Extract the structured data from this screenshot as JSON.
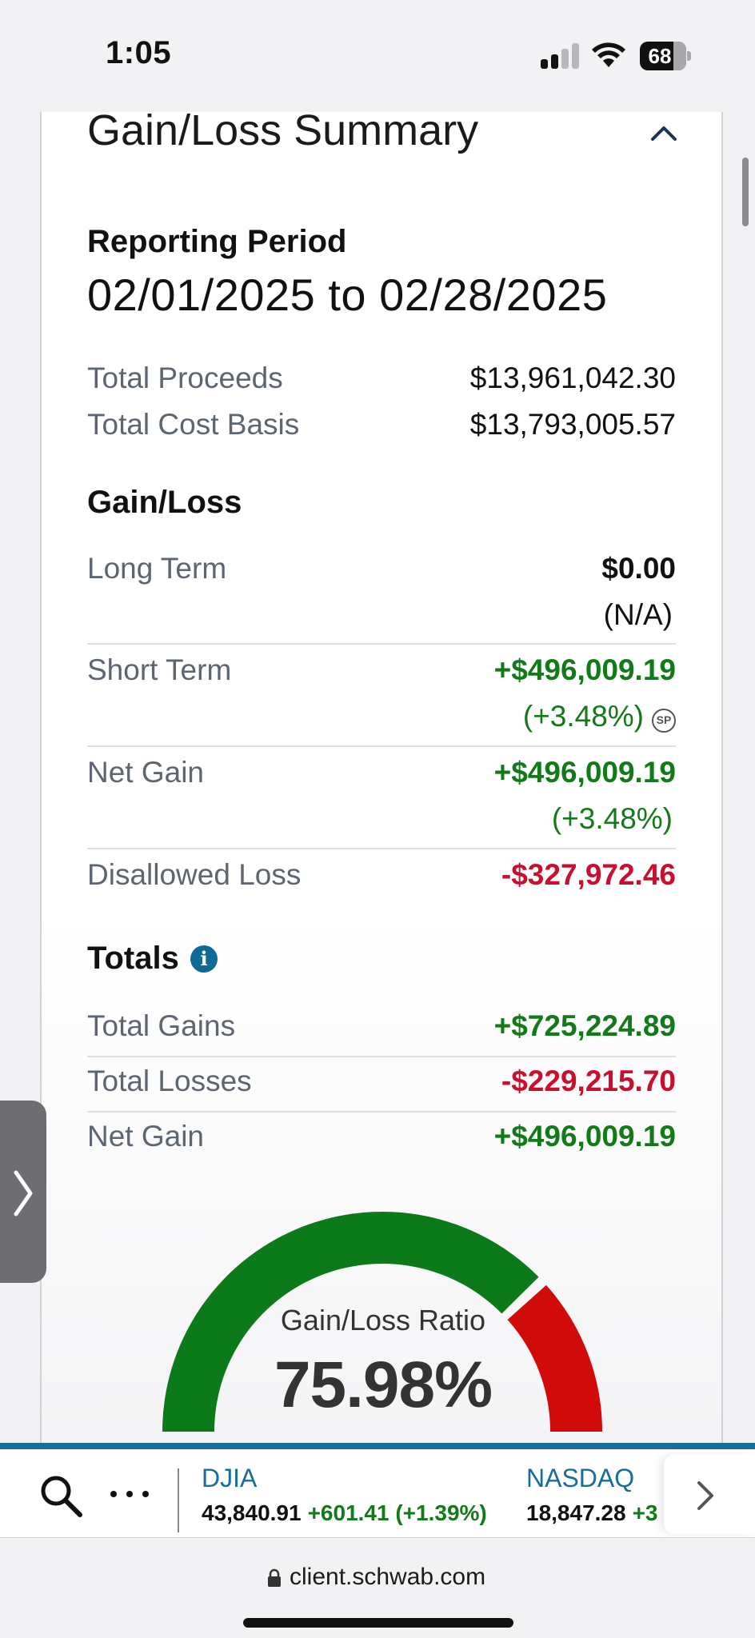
{
  "status_bar": {
    "time": "1:05",
    "battery": "68"
  },
  "section": {
    "title": "Gain/Loss Summary"
  },
  "reporting_period": {
    "label": "Reporting Period",
    "value": "02/01/2025 to 02/28/2025"
  },
  "summary": {
    "total_proceeds_label": "Total Proceeds",
    "total_proceeds_value": "$13,961,042.30",
    "total_cost_basis_label": "Total Cost Basis",
    "total_cost_basis_value": "$13,793,005.57"
  },
  "gain_loss": {
    "heading": "Gain/Loss",
    "long_term": {
      "label": "Long Term",
      "value": "$0.00",
      "pct": "(N/A)"
    },
    "short_term": {
      "label": "Short Term",
      "value": "+$496,009.19",
      "pct": "(+3.48%)",
      "badge": "SP"
    },
    "net_gain": {
      "label": "Net Gain",
      "value": "+$496,009.19",
      "pct": "(+3.48%)"
    },
    "disallowed_loss": {
      "label": "Disallowed Loss",
      "value": "-$327,972.46"
    }
  },
  "totals": {
    "heading": "Totals",
    "info_icon": "i",
    "total_gains": {
      "label": "Total Gains",
      "value": "+$725,224.89"
    },
    "total_losses": {
      "label": "Total Losses",
      "value": "-$229,215.70"
    },
    "net_gain": {
      "label": "Net Gain",
      "value": "+$496,009.19"
    }
  },
  "gauge": {
    "label": "Gain/Loss Ratio",
    "value": "75.98%",
    "ratio": 0.7598,
    "gain_color": "#0c7a18",
    "loss_color": "#d10a0a"
  },
  "ticker": {
    "items": [
      {
        "name": "DJIA",
        "price": "43,840.91",
        "change": "+601.41 (+1.39%)"
      },
      {
        "name": "NASDAQ",
        "price": "18,847.28",
        "change": "+3"
      }
    ]
  },
  "browser": {
    "url": "client.schwab.com"
  },
  "colors": {
    "accent": "#1a6d9a",
    "positive": "#137a1a",
    "negative": "#c8102e"
  }
}
